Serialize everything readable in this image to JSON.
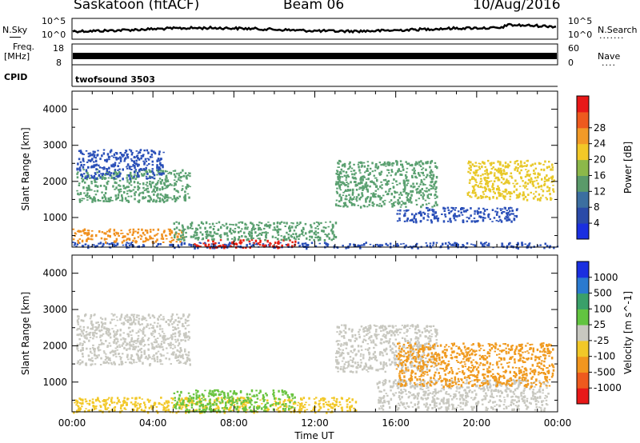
{
  "header": {
    "radar": "Saskatoon (fitACF)",
    "beam": "Beam 06",
    "date": "10/Aug/2016"
  },
  "status_panels": {
    "nsky_label": "N.Sky",
    "nsearch_label": "N.Search",
    "freq_label_1": "Freq.",
    "freq_label_2": "[MHz]",
    "nave_label": "Nave",
    "cpid_label": "CPID",
    "nsky_ticks": [
      "10^5",
      "10^0"
    ],
    "nsearch_ticks": [
      "10^5",
      "10^0"
    ],
    "freq_ticks": [
      "18",
      "8"
    ],
    "nave_ticks": [
      "60",
      "0"
    ],
    "cpid_value": "twofsound 3503"
  },
  "chart_data": [
    {
      "type": "heatmap",
      "ylabel": "Slant Range [km]",
      "xlabel": "Time UT",
      "colorbar_label": "Power [dB]",
      "ylim": [
        180,
        4500
      ],
      "xlim": [
        0,
        24
      ],
      "y_ticks": [
        1000,
        2000,
        3000,
        4000
      ],
      "x_ticks": [
        "00:00",
        "04:00",
        "08:00",
        "12:00",
        "16:00",
        "20:00",
        "00:00"
      ],
      "colorbar_ticks": [
        "4",
        "8",
        "12",
        "16",
        "20",
        "24",
        "28"
      ],
      "colorbar_colors": [
        "#1a2fe0",
        "#2a4aa8",
        "#3c6fa0",
        "#5a9a6a",
        "#8cb84a",
        "#f2c828",
        "#f29a28",
        "#ee5a1e",
        "#e81818"
      ],
      "regions": [
        {
          "t0": 0.0,
          "t1": 24.0,
          "r0": 180,
          "r1": 330,
          "level": "blue"
        },
        {
          "t0": 6.0,
          "t1": 11.0,
          "r0": 180,
          "r1": 400,
          "level": "red"
        },
        {
          "t0": 0.0,
          "t1": 5.5,
          "r0": 330,
          "r1": 700,
          "level": "orange"
        },
        {
          "t0": 0.2,
          "t1": 5.8,
          "r0": 1450,
          "r1": 2350,
          "level": "green"
        },
        {
          "t0": 0.2,
          "t1": 4.5,
          "r0": 2100,
          "r1": 2900,
          "level": "blue"
        },
        {
          "t0": 13.0,
          "t1": 18.0,
          "r0": 1300,
          "r1": 2600,
          "level": "green"
        },
        {
          "t0": 16.0,
          "t1": 22.0,
          "r0": 900,
          "r1": 1300,
          "level": "blue"
        },
        {
          "t0": 19.5,
          "t1": 23.8,
          "r0": 1500,
          "r1": 2600,
          "level": "yellow"
        },
        {
          "t0": 5.0,
          "t1": 13.0,
          "r0": 400,
          "r1": 900,
          "level": "green"
        }
      ]
    },
    {
      "type": "heatmap",
      "ylabel": "Slant Range [km]",
      "xlabel": "Time UT",
      "colorbar_label": "Velocity [m s^-1]",
      "ylim": [
        180,
        4500
      ],
      "xlim": [
        0,
        24
      ],
      "y_ticks": [
        1000,
        2000,
        3000,
        4000
      ],
      "x_ticks": [
        "00:00",
        "04:00",
        "08:00",
        "12:00",
        "16:00",
        "20:00",
        "00:00"
      ],
      "colorbar_ticks": [
        "1000",
        "500",
        "100",
        "25",
        "-25",
        "-100",
        "-500",
        "-1000"
      ],
      "colorbar_colors": [
        "#1a2fe0",
        "#2a7ad0",
        "#3aa06a",
        "#62c440",
        "#c8c8c0",
        "#f2c828",
        "#f2961e",
        "#ee5a1e",
        "#e81818"
      ],
      "regions": [
        {
          "t0": 0.0,
          "t1": 14.0,
          "r0": 180,
          "r1": 600,
          "level": "yellow"
        },
        {
          "t0": 5.0,
          "t1": 11.0,
          "r0": 200,
          "r1": 800,
          "level": "green"
        },
        {
          "t0": 0.2,
          "t1": 5.8,
          "r0": 1500,
          "r1": 2900,
          "level": "grey"
        },
        {
          "t0": 13.0,
          "t1": 18.0,
          "r0": 1300,
          "r1": 2600,
          "level": "grey"
        },
        {
          "t0": 15.0,
          "t1": 23.5,
          "r0": 250,
          "r1": 1100,
          "level": "grey"
        },
        {
          "t0": 16.0,
          "t1": 23.8,
          "r0": 900,
          "r1": 2100,
          "level": "orange"
        }
      ]
    }
  ]
}
